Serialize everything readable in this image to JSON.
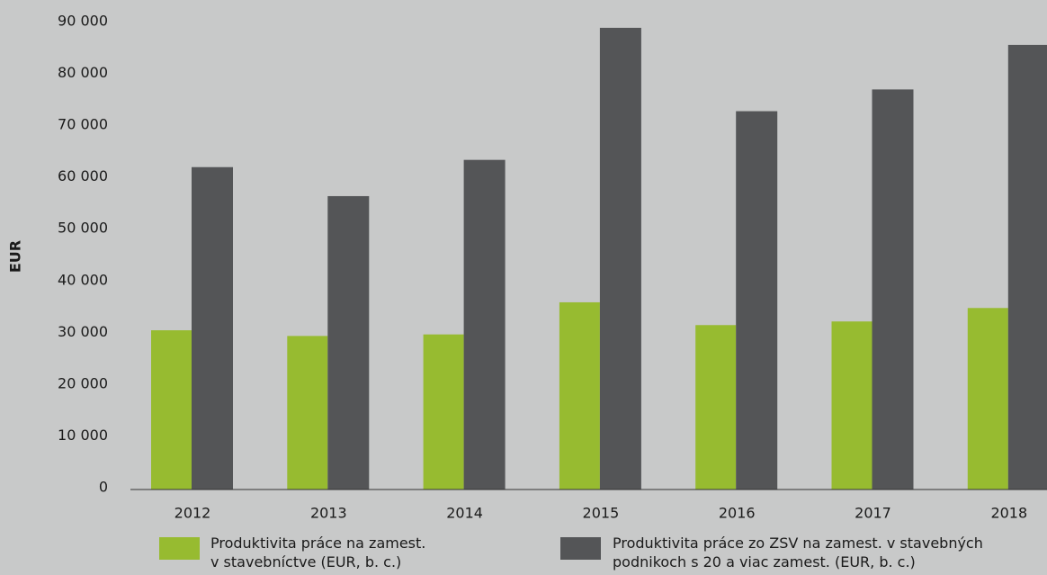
{
  "chart_data": {
    "type": "bar",
    "y_label": "EUR",
    "categories": [
      "2012",
      "2013",
      "2014",
      "2015",
      "2016",
      "2017",
      "2018"
    ],
    "series": [
      {
        "name": "Produktivita práce na zamest.\nv stavebníctve (EUR, b. c.)",
        "color": "#97bb30",
        "values": [
          30400,
          29300,
          29600,
          35800,
          31400,
          32100,
          34700
        ]
      },
      {
        "name": "Produktivita práce zo ZSV na zamest. v stavebných\npodnikoch s 20 a viac zamest. (EUR, b. c.)",
        "color": "#545557",
        "values": [
          61900,
          56300,
          63300,
          88800,
          72700,
          76900,
          85500
        ]
      }
    ],
    "ylim": [
      0,
      90000
    ],
    "yticks": [
      0,
      {
        "value": 10000,
        "label": "10 000"
      },
      {
        "value": 20000,
        "label": "20 000"
      },
      {
        "value": 30000,
        "label": "30 000"
      },
      {
        "value": 40000,
        "label": "40 000"
      },
      {
        "value": 50000,
        "label": "50 000"
      },
      {
        "value": 60000,
        "label": "60 000"
      },
      {
        "value": 70000,
        "label": "70 000"
      },
      {
        "value": 80000,
        "label": "80 000"
      },
      {
        "value": 90000,
        "label": "90 000"
      }
    ],
    "grid": false
  }
}
